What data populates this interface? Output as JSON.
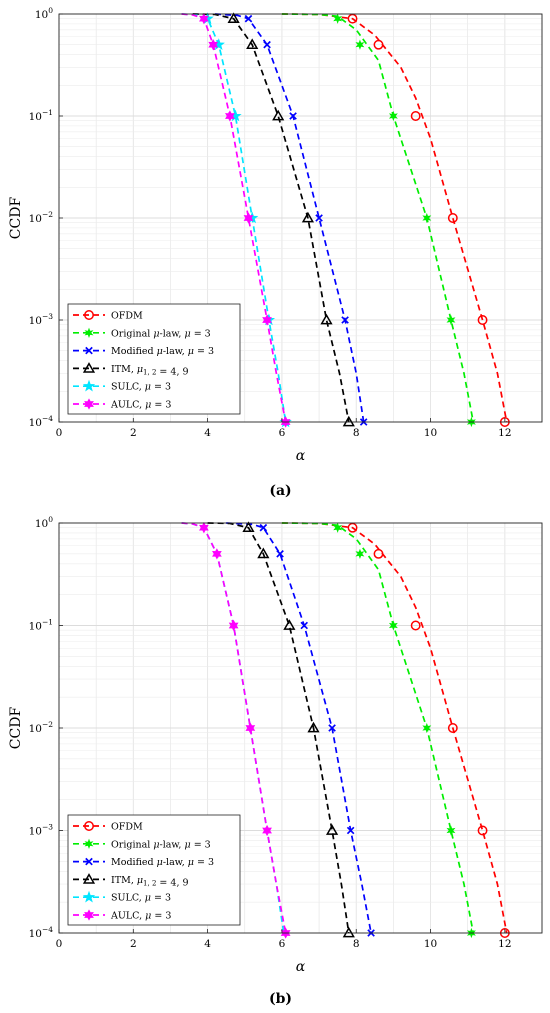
{
  "chart_data": [
    {
      "type": "line",
      "caption": "(a)",
      "xlabel": "α",
      "ylabel": "CCDF",
      "yscale": "log",
      "xlim": [
        0,
        13
      ],
      "ylim": [
        0.0001,
        1
      ],
      "xticks": [
        0,
        2,
        4,
        6,
        8,
        10,
        12
      ],
      "xtick_labels": [
        "0",
        "2",
        "4",
        "6",
        "8",
        "10",
        "12"
      ],
      "yticks": [
        0.0001,
        0.001,
        0.01,
        0.1,
        1
      ],
      "ytick_labels": [
        {
          "base": "10",
          "exp": "−4"
        },
        {
          "base": "10",
          "exp": "−3"
        },
        {
          "base": "10",
          "exp": "−2"
        },
        {
          "base": "10",
          "exp": "−1"
        },
        {
          "base": "10",
          "exp": "0"
        }
      ],
      "grid": true,
      "legend_position": "lower-left",
      "series": [
        {
          "name": "OFDM",
          "legend": [
            {
              "t": "OFDM"
            }
          ],
          "color": "#ff0000",
          "marker": "circle",
          "line": [
            [
              6.0,
              1
            ],
            [
              7.0,
              0.99
            ],
            [
              7.9,
              0.9
            ],
            [
              8.5,
              0.62
            ],
            [
              9.2,
              0.3
            ],
            [
              9.6,
              0.15
            ],
            [
              10.0,
              0.06
            ],
            [
              10.6,
              0.01
            ],
            [
              11.4,
              0.001
            ],
            [
              11.8,
              0.0003
            ],
            [
              12.05,
              0.0001
            ]
          ],
          "points": [
            [
              7.9,
              0.9
            ],
            [
              8.6,
              0.5
            ],
            [
              9.6,
              0.1
            ],
            [
              10.6,
              0.01
            ],
            [
              11.4,
              0.001
            ],
            [
              12.0,
              0.0001
            ]
          ]
        },
        {
          "name": "Original μ-law, μ = 3",
          "legend": [
            {
              "t": "Original "
            },
            {
              "t": "μ",
              "i": true
            },
            {
              "t": "-law, "
            },
            {
              "t": "μ",
              "i": true
            },
            {
              "t": " = 3"
            }
          ],
          "color": "#00ee00",
          "marker": "star",
          "line": [
            [
              6.0,
              1
            ],
            [
              7.0,
              0.99
            ],
            [
              7.5,
              0.95
            ],
            [
              8.0,
              0.7
            ],
            [
              8.6,
              0.35
            ],
            [
              9.0,
              0.1
            ],
            [
              9.9,
              0.01
            ],
            [
              10.55,
              0.001
            ],
            [
              10.9,
              0.0003
            ],
            [
              11.15,
              0.0001
            ]
          ],
          "points": [
            [
              7.5,
              0.9
            ],
            [
              8.1,
              0.5
            ],
            [
              9.0,
              0.1
            ],
            [
              9.9,
              0.01
            ],
            [
              10.55,
              0.001
            ],
            [
              11.1,
              0.0001
            ]
          ]
        },
        {
          "name": "Modified μ-law, μ = 3",
          "legend": [
            {
              "t": "Modified "
            },
            {
              "t": "μ",
              "i": true
            },
            {
              "t": "-law, "
            },
            {
              "t": "μ",
              "i": true
            },
            {
              "t": " = 3"
            }
          ],
          "color": "#0000ff",
          "marker": "x",
          "line": [
            [
              4.2,
              1
            ],
            [
              4.8,
              0.97
            ],
            [
              5.1,
              0.9
            ],
            [
              5.6,
              0.5
            ],
            [
              6.3,
              0.1
            ],
            [
              7.0,
              0.01
            ],
            [
              7.7,
              0.001
            ],
            [
              8.0,
              0.0003
            ],
            [
              8.2,
              0.0001
            ]
          ],
          "points": [
            [
              5.1,
              0.9
            ],
            [
              5.6,
              0.5
            ],
            [
              6.3,
              0.1
            ],
            [
              7.0,
              0.01
            ],
            [
              7.7,
              0.001
            ],
            [
              8.2,
              0.0001
            ]
          ]
        },
        {
          "name": "ITM, μ1, 2 = 4, 9",
          "legend": [
            {
              "t": "ITM, "
            },
            {
              "t": "μ",
              "i": true
            },
            {
              "t": "1, 2",
              "sub": true
            },
            {
              "t": " = 4, 9"
            }
          ],
          "color": "#000000",
          "marker": "triangle",
          "line": [
            [
              3.6,
              1
            ],
            [
              4.2,
              0.99
            ],
            [
              4.7,
              0.9
            ],
            [
              5.2,
              0.5
            ],
            [
              5.9,
              0.1
            ],
            [
              6.7,
              0.01
            ],
            [
              7.2,
              0.001
            ],
            [
              7.55,
              0.0003
            ],
            [
              7.8,
              0.0001
            ]
          ],
          "points": [
            [
              4.7,
              0.9
            ],
            [
              5.2,
              0.5
            ],
            [
              5.9,
              0.1
            ],
            [
              6.7,
              0.01
            ],
            [
              7.2,
              0.001
            ],
            [
              7.8,
              0.0001
            ]
          ]
        },
        {
          "name": "SULC, μ = 3",
          "legend": [
            {
              "t": "SULC, "
            },
            {
              "t": "μ",
              "i": true
            },
            {
              "t": " = 3"
            }
          ],
          "color": "#00e5ff",
          "marker": "pentagram",
          "line": [
            [
              3.3,
              1
            ],
            [
              3.7,
              0.98
            ],
            [
              4.0,
              0.9
            ],
            [
              4.3,
              0.5
            ],
            [
              4.75,
              0.1
            ],
            [
              5.2,
              0.01
            ],
            [
              5.65,
              0.001
            ],
            [
              5.9,
              0.0003
            ],
            [
              6.1,
              0.0001
            ]
          ],
          "points": [
            [
              4.0,
              0.9
            ],
            [
              4.3,
              0.5
            ],
            [
              4.75,
              0.1
            ],
            [
              5.2,
              0.01
            ],
            [
              5.65,
              0.001
            ],
            [
              6.1,
              0.0001
            ]
          ]
        },
        {
          "name": "AULC, μ = 3",
          "legend": [
            {
              "t": "AULC, "
            },
            {
              "t": "μ",
              "i": true
            },
            {
              "t": " = 3"
            }
          ],
          "color": "#ff00ff",
          "marker": "hexagram",
          "line": [
            [
              3.3,
              1
            ],
            [
              3.6,
              0.98
            ],
            [
              3.9,
              0.9
            ],
            [
              4.15,
              0.5
            ],
            [
              4.6,
              0.1
            ],
            [
              5.1,
              0.01
            ],
            [
              5.6,
              0.001
            ],
            [
              5.85,
              0.0003
            ],
            [
              6.1,
              0.0001
            ]
          ],
          "points": [
            [
              3.9,
              0.9
            ],
            [
              4.15,
              0.5
            ],
            [
              4.6,
              0.1
            ],
            [
              5.1,
              0.01
            ],
            [
              5.6,
              0.001
            ],
            [
              6.1,
              0.0001
            ]
          ]
        }
      ]
    },
    {
      "type": "line",
      "caption": "(b)",
      "xlabel": "α",
      "ylabel": "CCDF",
      "yscale": "log",
      "xlim": [
        0,
        13
      ],
      "ylim": [
        0.0001,
        1
      ],
      "xticks": [
        0,
        2,
        4,
        6,
        8,
        10,
        12
      ],
      "xtick_labels": [
        "0",
        "2",
        "4",
        "6",
        "8",
        "10",
        "12"
      ],
      "yticks": [
        0.0001,
        0.001,
        0.01,
        0.1,
        1
      ],
      "ytick_labels": [
        {
          "base": "10",
          "exp": "−4"
        },
        {
          "base": "10",
          "exp": "−3"
        },
        {
          "base": "10",
          "exp": "−2"
        },
        {
          "base": "10",
          "exp": "−1"
        },
        {
          "base": "10",
          "exp": "0"
        }
      ],
      "grid": true,
      "legend_position": "lower-left",
      "series": [
        {
          "name": "OFDM",
          "legend": [
            {
              "t": "OFDM"
            }
          ],
          "color": "#ff0000",
          "marker": "circle",
          "line": [
            [
              6.0,
              1
            ],
            [
              7.0,
              0.99
            ],
            [
              7.9,
              0.9
            ],
            [
              8.5,
              0.62
            ],
            [
              9.2,
              0.3
            ],
            [
              9.6,
              0.15
            ],
            [
              10.0,
              0.06
            ],
            [
              10.6,
              0.01
            ],
            [
              11.4,
              0.001
            ],
            [
              11.8,
              0.0003
            ],
            [
              12.05,
              0.0001
            ]
          ],
          "points": [
            [
              7.9,
              0.9
            ],
            [
              8.6,
              0.5
            ],
            [
              9.6,
              0.1
            ],
            [
              10.6,
              0.01
            ],
            [
              11.4,
              0.001
            ],
            [
              12.0,
              0.0001
            ]
          ]
        },
        {
          "name": "Original μ-law, μ = 3",
          "legend": [
            {
              "t": "Original "
            },
            {
              "t": "μ",
              "i": true
            },
            {
              "t": "-law, "
            },
            {
              "t": "μ",
              "i": true
            },
            {
              "t": " = 3"
            }
          ],
          "color": "#00ee00",
          "marker": "star",
          "line": [
            [
              6.0,
              1
            ],
            [
              7.0,
              0.99
            ],
            [
              7.5,
              0.95
            ],
            [
              8.0,
              0.7
            ],
            [
              8.6,
              0.35
            ],
            [
              9.0,
              0.1
            ],
            [
              9.9,
              0.01
            ],
            [
              10.55,
              0.001
            ],
            [
              10.9,
              0.0003
            ],
            [
              11.15,
              0.0001
            ]
          ],
          "points": [
            [
              7.5,
              0.9
            ],
            [
              8.1,
              0.5
            ],
            [
              9.0,
              0.1
            ],
            [
              9.9,
              0.01
            ],
            [
              10.55,
              0.001
            ],
            [
              11.1,
              0.0001
            ]
          ]
        },
        {
          "name": "Modified μ-law, μ = 3",
          "legend": [
            {
              "t": "Modified "
            },
            {
              "t": "μ",
              "i": true
            },
            {
              "t": "-law, "
            },
            {
              "t": "μ",
              "i": true
            },
            {
              "t": " = 3"
            }
          ],
          "color": "#0000ff",
          "marker": "x",
          "line": [
            [
              4.5,
              1
            ],
            [
              5.2,
              0.97
            ],
            [
              5.5,
              0.9
            ],
            [
              5.95,
              0.5
            ],
            [
              6.6,
              0.1
            ],
            [
              7.35,
              0.01
            ],
            [
              7.85,
              0.001
            ],
            [
              8.15,
              0.0003
            ],
            [
              8.4,
              0.0001
            ]
          ],
          "points": [
            [
              5.5,
              0.9
            ],
            [
              5.95,
              0.5
            ],
            [
              6.6,
              0.1
            ],
            [
              7.35,
              0.01
            ],
            [
              7.85,
              0.001
            ],
            [
              8.4,
              0.0001
            ]
          ]
        },
        {
          "name": "ITM, μ1, 2 = 4, 9",
          "legend": [
            {
              "t": "ITM, "
            },
            {
              "t": "μ",
              "i": true
            },
            {
              "t": "1, 2",
              "sub": true
            },
            {
              "t": " = 4, 9"
            }
          ],
          "color": "#000000",
          "marker": "triangle",
          "line": [
            [
              4.0,
              1
            ],
            [
              4.6,
              0.99
            ],
            [
              5.1,
              0.9
            ],
            [
              5.5,
              0.5
            ],
            [
              6.2,
              0.1
            ],
            [
              6.85,
              0.01
            ],
            [
              7.35,
              0.001
            ],
            [
              7.6,
              0.0003
            ],
            [
              7.8,
              0.0001
            ]
          ],
          "points": [
            [
              5.1,
              0.9
            ],
            [
              5.5,
              0.5
            ],
            [
              6.2,
              0.1
            ],
            [
              6.85,
              0.01
            ],
            [
              7.35,
              0.001
            ],
            [
              7.8,
              0.0001
            ]
          ]
        },
        {
          "name": "SULC, μ = 3",
          "legend": [
            {
              "t": "SULC, "
            },
            {
              "t": "μ",
              "i": true
            },
            {
              "t": " = 3"
            }
          ],
          "color": "#00e5ff",
          "marker": "pentagram",
          "line": [
            [
              3.3,
              1
            ],
            [
              3.6,
              0.98
            ],
            [
              3.9,
              0.9
            ],
            [
              4.25,
              0.5
            ],
            [
              4.7,
              0.1
            ],
            [
              5.15,
              0.01
            ],
            [
              5.6,
              0.001
            ],
            [
              5.85,
              0.0003
            ],
            [
              6.05,
              0.0001
            ]
          ],
          "points": []
        },
        {
          "name": "AULC, μ = 3",
          "legend": [
            {
              "t": "AULC, "
            },
            {
              "t": "μ",
              "i": true
            },
            {
              "t": " = 3"
            }
          ],
          "color": "#ff00ff",
          "marker": "hexagram",
          "line": [
            [
              3.3,
              1
            ],
            [
              3.6,
              0.98
            ],
            [
              3.9,
              0.9
            ],
            [
              4.25,
              0.5
            ],
            [
              4.7,
              0.1
            ],
            [
              5.15,
              0.01
            ],
            [
              5.6,
              0.001
            ],
            [
              5.85,
              0.0003
            ],
            [
              6.1,
              0.0001
            ]
          ],
          "points": [
            [
              3.9,
              0.9
            ],
            [
              4.25,
              0.5
            ],
            [
              4.7,
              0.1
            ],
            [
              5.15,
              0.01
            ],
            [
              5.6,
              0.001
            ],
            [
              6.1,
              0.0001
            ]
          ]
        }
      ]
    }
  ]
}
